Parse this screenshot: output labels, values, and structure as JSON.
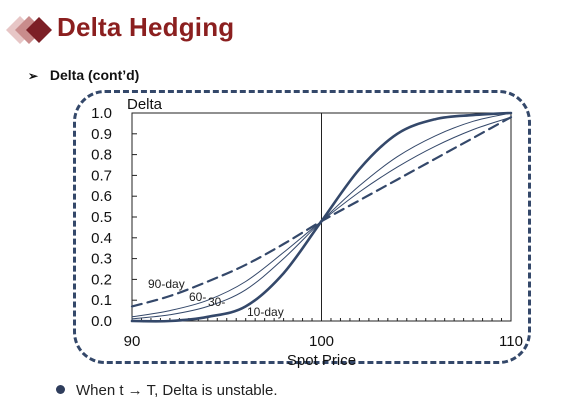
{
  "slide": {
    "title": "Delta Hedging",
    "subheading": "Delta (cont’d)",
    "subheading_marker": "➢",
    "bullet": "When t → T, Delta is unstable."
  },
  "colors": {
    "title": "#8b1f1f",
    "logo_dark": "#7c1f26",
    "logo_light": "#e7c6c6",
    "curves": "#34486a",
    "frame": "#34486a"
  },
  "chart_data": {
    "type": "line",
    "title": "Delta",
    "xlabel": "Spot Price",
    "ylabel": "Delta",
    "xlim": [
      90,
      110
    ],
    "ylim": [
      0,
      1
    ],
    "xticks": [
      "90",
      "100",
      "110"
    ],
    "yticks": [
      "0.0",
      "0.1",
      "0.2",
      "0.3",
      "0.4",
      "0.5",
      "0.6",
      "0.7",
      "0.8",
      "0.9",
      "1.0"
    ],
    "reference_line_x": 100,
    "grid": false,
    "x": [
      90,
      92,
      94,
      96,
      98,
      100,
      102,
      104,
      106,
      108,
      110
    ],
    "series": [
      {
        "name": "10-day",
        "style": "bold",
        "values": [
          0.0,
          0.0,
          0.02,
          0.07,
          0.23,
          0.48,
          0.73,
          0.9,
          0.97,
          0.99,
          1.0
        ]
      },
      {
        "name": "30-",
        "style": "thin",
        "values": [
          0.01,
          0.03,
          0.07,
          0.15,
          0.3,
          0.48,
          0.65,
          0.79,
          0.89,
          0.96,
          1.0
        ]
      },
      {
        "name": "60-",
        "style": "thin",
        "values": [
          0.02,
          0.05,
          0.1,
          0.19,
          0.33,
          0.48,
          0.62,
          0.74,
          0.84,
          0.92,
          0.98
        ]
      },
      {
        "name": "90-day",
        "style": "dashed",
        "values": [
          0.07,
          0.12,
          0.19,
          0.27,
          0.37,
          0.48,
          0.58,
          0.68,
          0.78,
          0.88,
          0.98
        ]
      }
    ]
  }
}
